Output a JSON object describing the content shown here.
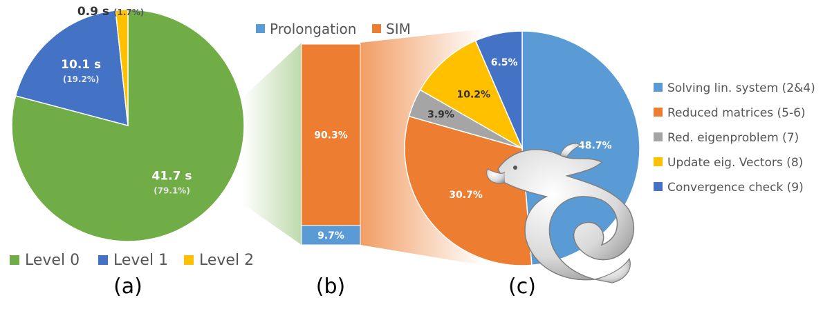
{
  "chart_data": [
    {
      "type": "pie",
      "labels": [
        "Level 0",
        "Level 1",
        "Level 2"
      ],
      "values": [
        41.7,
        10.1,
        0.9
      ],
      "value_labels": [
        "41.7 s",
        "10.1 s",
        "0.9 s"
      ],
      "percent_labels": [
        "(79.1%)",
        "(19.2%)",
        "(1.7%)"
      ],
      "percents": [
        79.1,
        19.2,
        1.7
      ],
      "colors": [
        "#70ad47",
        "#4472c4",
        "#ffc000"
      ],
      "legend": "bottom",
      "caption": "(a)"
    },
    {
      "type": "bar",
      "stacked": true,
      "series": [
        {
          "name": "Prolongation",
          "value": 9.7,
          "label": "9.7%",
          "color": "#5b9bd5"
        },
        {
          "name": "SIM",
          "value": 90.3,
          "label": "90.3%",
          "color": "#ed7d31"
        }
      ],
      "legend": "top",
      "caption": "(b)"
    },
    {
      "type": "pie",
      "labels": [
        "Solving lin. system (2&4)",
        "Reduced matrices (5-6)",
        "Red. eigenproblem (7)",
        "Update eig. Vectors (8)",
        "Convergence check (9)"
      ],
      "values": [
        48.7,
        30.7,
        3.9,
        10.2,
        6.5
      ],
      "value_labels": [
        "48.7%",
        "30.7%",
        "3.9%",
        "10.2%",
        "6.5%"
      ],
      "colors": [
        "#5b9bd5",
        "#ed7d31",
        "#a5a5a5",
        "#ffc000",
        "#4472c4"
      ],
      "legend": "right",
      "caption": "(c)"
    }
  ]
}
